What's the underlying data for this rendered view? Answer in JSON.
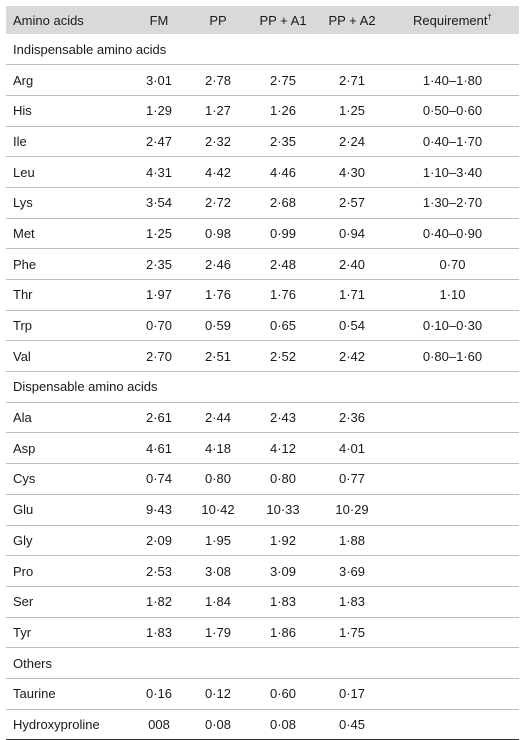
{
  "headers": [
    "Amino acids",
    "FM",
    "PP",
    "PP + A1",
    "PP + A2",
    "Requirement"
  ],
  "requirement_mark": "†",
  "sections": [
    {
      "title": "Indispensable amino acids",
      "rows": [
        [
          "Arg",
          "3·01",
          "2·78",
          "2·75",
          "2·71",
          "1·40–1·80"
        ],
        [
          "His",
          "1·29",
          "1·27",
          "1·26",
          "1·25",
          "0·50–0·60"
        ],
        [
          "Ile",
          "2·47",
          "2·32",
          "2·35",
          "2·24",
          "0·40–1·70"
        ],
        [
          "Leu",
          "4·31",
          "4·42",
          "4·46",
          "4·30",
          "1·10–3·40"
        ],
        [
          "Lys",
          "3·54",
          "2·72",
          "2·68",
          "2·57",
          "1·30–2·70"
        ],
        [
          "Met",
          "1·25",
          "0·98",
          "0·99",
          "0·94",
          "0·40–0·90"
        ],
        [
          "Phe",
          "2·35",
          "2·46",
          "2·48",
          "2·40",
          "0·70"
        ],
        [
          "Thr",
          "1·97",
          "1·76",
          "1·76",
          "1·71",
          "1·10"
        ],
        [
          "Trp",
          "0·70",
          "0·59",
          "0·65",
          "0·54",
          "0·10–0·30"
        ],
        [
          "Val",
          "2·70",
          "2·51",
          "2·52",
          "2·42",
          "0·80–1·60"
        ]
      ]
    },
    {
      "title": "Dispensable amino acids",
      "rows": [
        [
          "Ala",
          "2·61",
          "2·44",
          "2·43",
          "2·36",
          ""
        ],
        [
          "Asp",
          "4·61",
          "4·18",
          "4·12",
          "4·01",
          ""
        ],
        [
          "Cys",
          "0·74",
          "0·80",
          "0·80",
          "0·77",
          ""
        ],
        [
          "Glu",
          "9·43",
          "10·42",
          "10·33",
          "10·29",
          ""
        ],
        [
          "Gly",
          "2·09",
          "1·95",
          "1·92",
          "1·88",
          ""
        ],
        [
          "Pro",
          "2·53",
          "3·08",
          "3·09",
          "3·69",
          ""
        ],
        [
          "Ser",
          "1·82",
          "1·84",
          "1·83",
          "1·83",
          ""
        ],
        [
          "Tyr",
          "1·83",
          "1·79",
          "1·86",
          "1·75",
          ""
        ]
      ]
    },
    {
      "title": "Others",
      "rows": [
        [
          "Taurine",
          "0·16",
          "0·12",
          "0·60",
          "0·17",
          ""
        ],
        [
          "Hydroxyproline",
          "008",
          "0·08",
          "0·08",
          "0·45",
          ""
        ]
      ]
    }
  ]
}
